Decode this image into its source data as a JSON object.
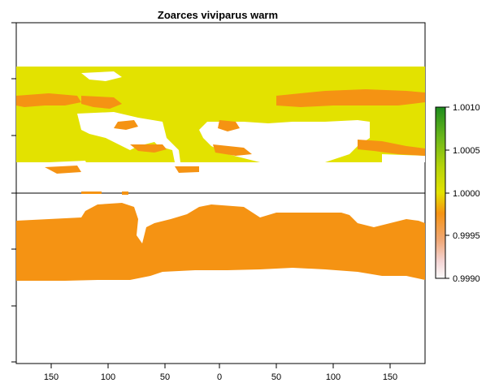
{
  "title": "Zoarces viviparus warm",
  "x_ticks": [
    "150",
    "100",
    "50",
    "0",
    "50",
    "100",
    "150"
  ],
  "legend": {
    "labels": [
      "1.0010",
      "1.0005",
      "1.0000",
      "0.9995",
      "0.9990"
    ],
    "colors": {
      "high": "#1e8c1e",
      "mid_high": "#8cc814",
      "one": "#e3e200",
      "orange": "#f59313",
      "low": "#fbfbfb"
    }
  },
  "colors": {
    "north_fill": "#e3e200",
    "north_patch": "#f59313",
    "south_fill": "#f59313",
    "frame": "#000000"
  }
}
